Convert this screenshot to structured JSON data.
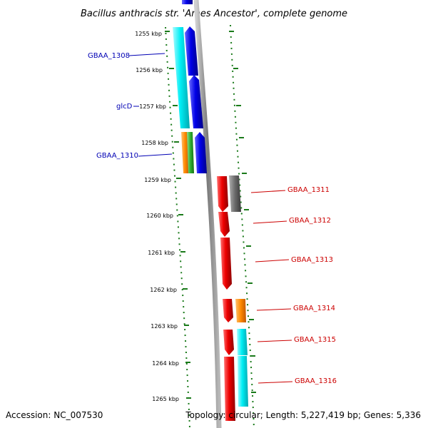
{
  "title": "Bacillus anthracis str. 'Ames Ancestor', complete genome",
  "accession": "Accession: NC_007530",
  "topology": "Topology: circular; Length: 5,227,419 bp; Genes: 5,336",
  "ticks": [
    "1255 kbp",
    "1256 kbp",
    "1257 kbp",
    "1258 kbp",
    "1259 kbp",
    "1260 kbp",
    "1261 kbp",
    "1262 kbp",
    "1263 kbp",
    "1264 kbp",
    "1265 kbp"
  ],
  "colors": {
    "forward_label": "#0000b4",
    "reverse_label": "#cc0000",
    "backbone": "#8c8c8c",
    "ticks": "#1a7a1a",
    "blue": "#0000e0",
    "cyan": "#00e8f0",
    "red": "#ee0000",
    "gray": "#666666",
    "orange": "#ff8a00",
    "green": "#30b030"
  },
  "forward_genes": [
    {
      "label": "GBAA_1308"
    },
    {
      "label": "glcD"
    },
    {
      "label": "GBAA_1310"
    }
  ],
  "reverse_genes": [
    {
      "label": "GBAA_1311"
    },
    {
      "label": "GBAA_1312"
    },
    {
      "label": "GBAA_1313"
    },
    {
      "label": "GBAA_1314"
    },
    {
      "label": "GBAA_1315"
    },
    {
      "label": "GBAA_1316"
    }
  ]
}
